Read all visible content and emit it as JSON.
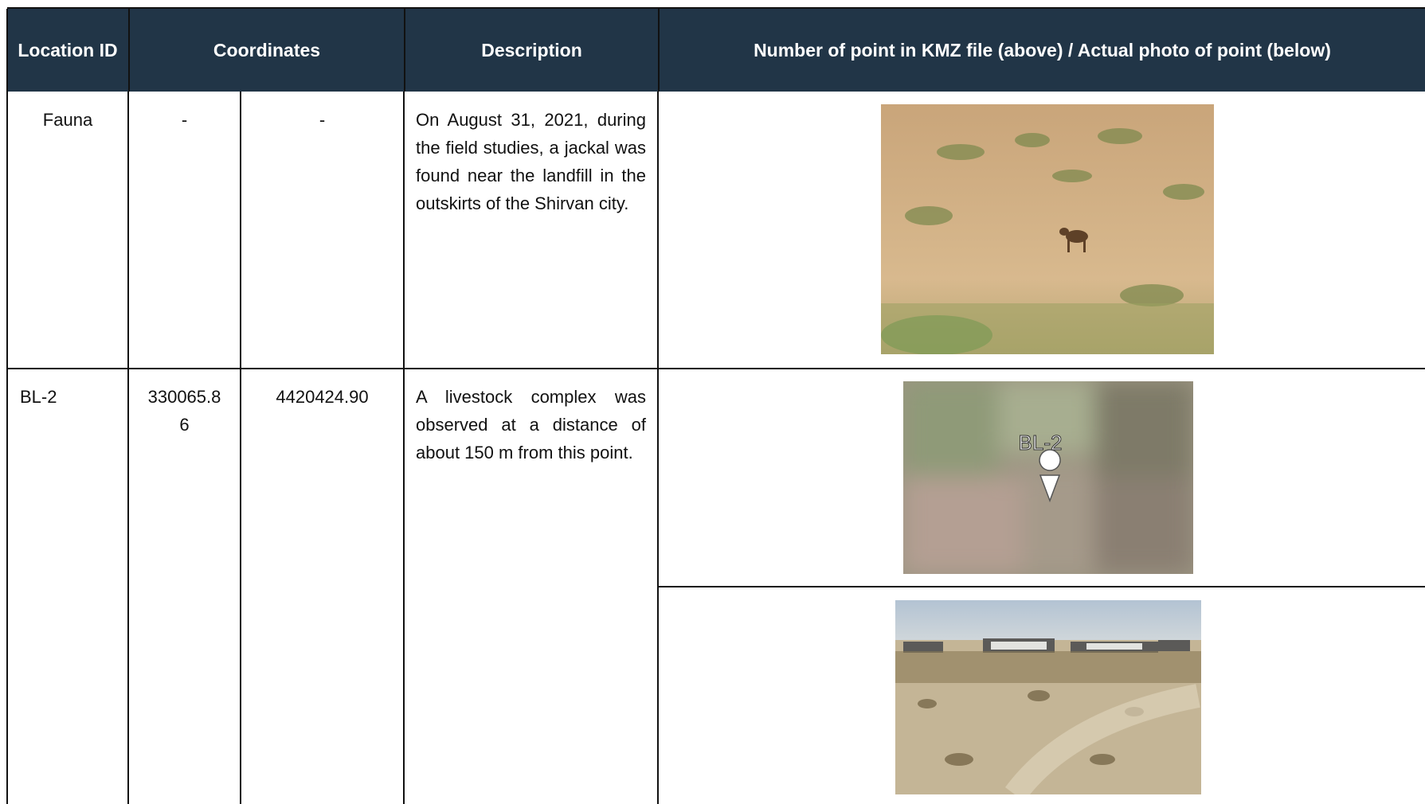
{
  "table": {
    "header": [
      "Location ID",
      "Coordinates",
      "Description",
      "Number of point in KMZ file (above) / Actual photo of point (below)"
    ],
    "rows": [
      {
        "id": "Fauna",
        "x": "-",
        "y": "-",
        "description": "On August 31, 2021, during the field studies, a jackal was found near the landfill in the outskirts of the Shirvan city."
      },
      {
        "id": "BL-2",
        "x": "330065.86",
        "y": "4420424.90",
        "description": "A livestock complex was observed at a distance of about 150 m from this point.",
        "kmz_label": "BL-2"
      }
    ]
  }
}
